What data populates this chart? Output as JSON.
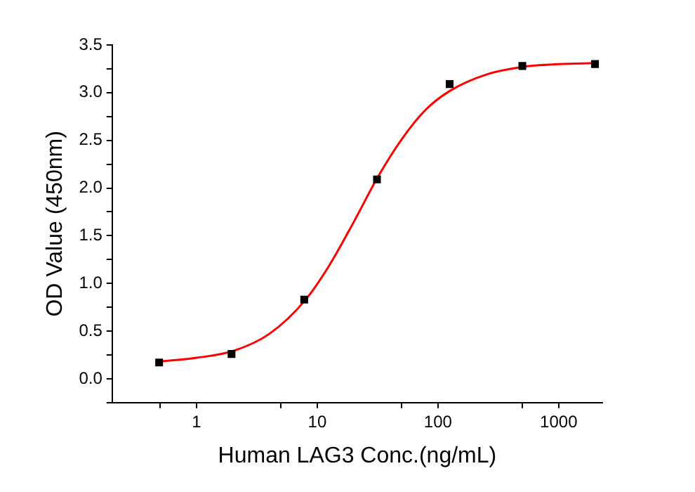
{
  "chart_data": {
    "type": "scatter",
    "xlabel": "Human LAG3 Conc.(ng/mL)",
    "ylabel": "OD Value (450nm)",
    "log": "x",
    "xlim": [
      0.2,
      2300
    ],
    "ylim": [
      -0.25,
      3.5
    ],
    "xticks": [
      {
        "value": 0.5,
        "label": null
      },
      1,
      {
        "value": 5,
        "label": null
      },
      10,
      {
        "value": 50,
        "label": null
      },
      100,
      {
        "value": 500,
        "label": null
      },
      1000
    ],
    "yticks": [
      {
        "value": -0.25,
        "label": null
      },
      "0.0",
      {
        "value": 0.25,
        "label": null
      },
      0.5,
      {
        "value": 0.75,
        "label": null
      },
      "1.0",
      {
        "value": 1.25,
        "label": null
      },
      1.5,
      {
        "value": 1.75,
        "label": null
      },
      "2.0",
      {
        "value": 2.25,
        "label": null
      },
      2.5,
      {
        "value": 2.75,
        "label": null
      },
      "3.0",
      {
        "value": 3.25,
        "label": null
      },
      3.5
    ],
    "grid": false,
    "legend": false,
    "series": [
      {
        "type": "line",
        "color": "#ff0000",
        "marker": "none",
        "line_style": "solid",
        "x": [
          0.49,
          1,
          2,
          4,
          7.9,
          12.6,
          20,
          31.6,
          50,
          79,
          126,
          251,
          501,
          1000,
          2000
        ],
        "values": [
          0.18,
          0.22,
          0.29,
          0.47,
          0.82,
          1.19,
          1.64,
          2.11,
          2.51,
          2.82,
          3.02,
          3.19,
          3.27,
          3.3,
          3.31
        ]
      },
      {
        "type": "scatter",
        "color": "#000000",
        "marker": "square",
        "x": [
          0.49,
          1.95,
          7.8,
          31.25,
          125,
          500,
          2000
        ],
        "values": [
          0.17,
          0.26,
          0.83,
          2.09,
          3.09,
          3.28,
          3.3
        ]
      }
    ]
  }
}
